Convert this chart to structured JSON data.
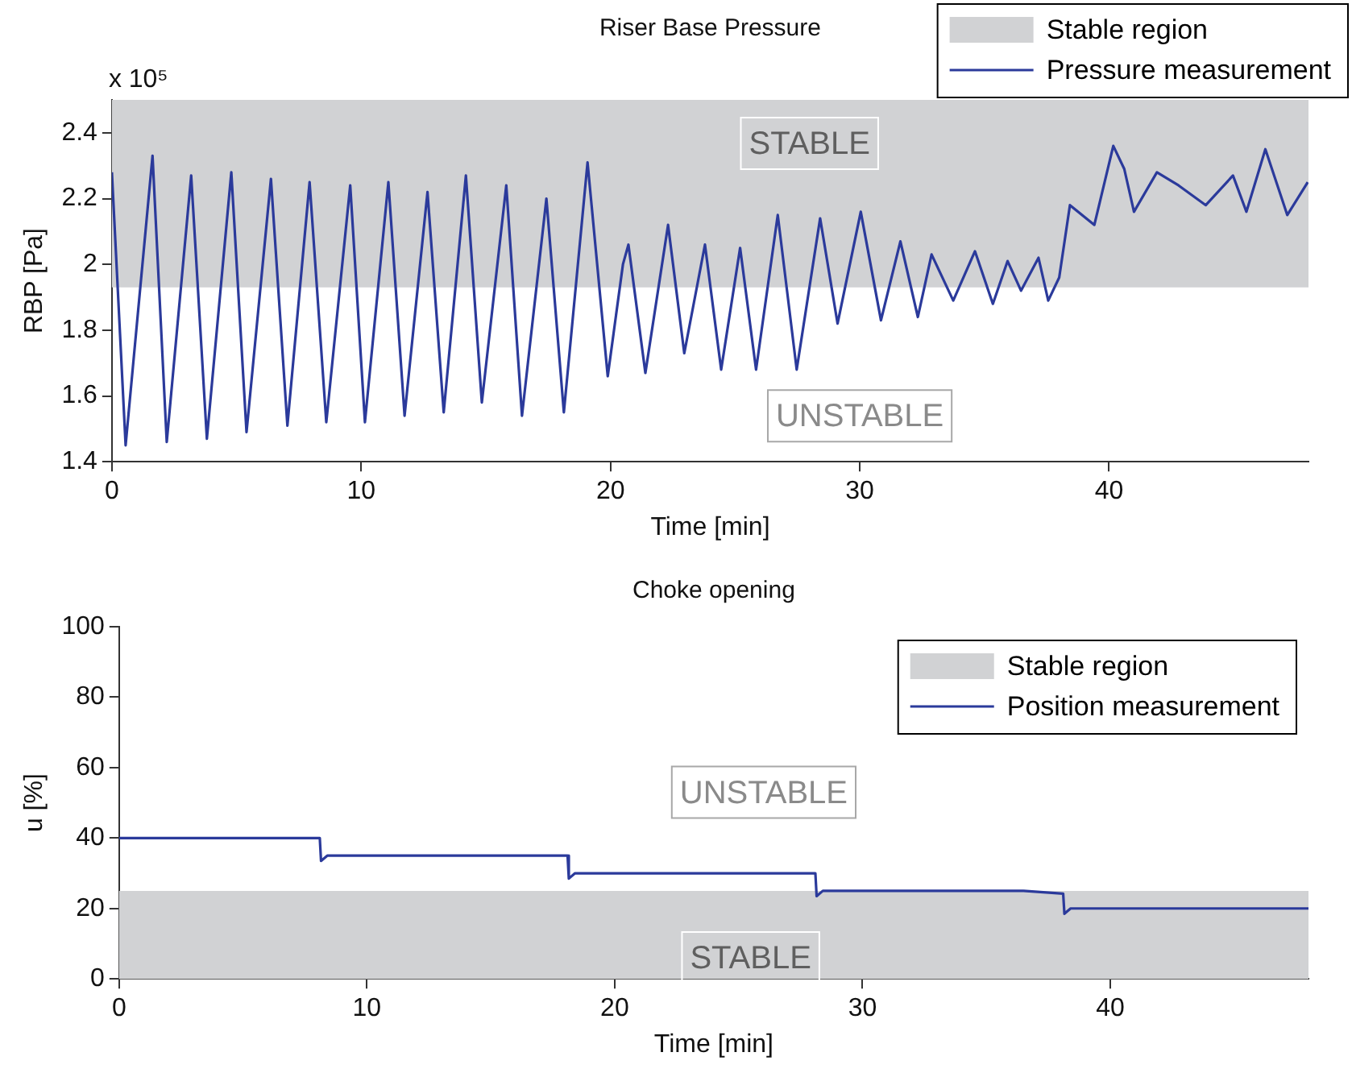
{
  "chart_data": [
    {
      "type": "line",
      "title": "Riser Base Pressure",
      "xlabel": "Time [min]",
      "ylabel": "RBP [Pa]",
      "xlim": [
        0,
        48
      ],
      "xticks": [
        0,
        10,
        20,
        30,
        40
      ],
      "ylim": [
        1.4,
        2.5
      ],
      "yticks": [
        1.4,
        1.6,
        1.8,
        2,
        2.2,
        2.4
      ],
      "grid": false,
      "legend": "top",
      "marker": "none",
      "line_style": "solid",
      "bands": [
        {
          "axis": "y",
          "from": 1.93,
          "to": 2.5,
          "label": "Stable region",
          "color": "#d1d2d4"
        }
      ],
      "annotations": [
        "x 10⁵",
        "STABLE",
        "UNSTABLE"
      ],
      "series": [
        {
          "name": "Pressure measurement",
          "color": "#2b3a9b",
          "x": [
            0,
            0.55,
            1.63,
            2.2,
            3.18,
            3.81,
            4.79,
            5.4,
            6.38,
            7.04,
            7.93,
            8.6,
            9.56,
            10.15,
            11.09,
            11.74,
            12.66,
            13.31,
            14.2,
            14.84,
            15.82,
            16.45,
            17.43,
            18.13,
            19.08,
            19.89,
            20.5,
            20.72,
            21.4,
            22.31,
            22.96,
            23.79,
            24.44,
            25.2,
            25.84,
            26.71,
            27.47,
            28.41,
            29.11,
            30.04,
            30.85,
            31.63,
            32.33,
            32.88,
            33.75,
            34.62,
            35.34,
            35.93,
            36.47,
            37.17,
            37.56,
            38.0,
            38.43,
            39.41,
            40.17,
            40.61,
            41.0,
            41.92,
            42.79,
            43.88,
            44.97,
            45.51,
            46.27,
            47.15,
            47.97
          ],
          "values": [
            2.28,
            1.45,
            2.33,
            1.46,
            2.27,
            1.47,
            2.28,
            1.49,
            2.26,
            1.51,
            2.25,
            1.52,
            2.24,
            1.52,
            2.25,
            1.54,
            2.22,
            1.55,
            2.27,
            1.58,
            2.24,
            1.54,
            2.2,
            1.55,
            2.31,
            1.66,
            2.0,
            2.06,
            1.67,
            2.12,
            1.73,
            2.06,
            1.68,
            2.05,
            1.68,
            2.15,
            1.68,
            2.14,
            1.82,
            2.16,
            1.83,
            2.07,
            1.84,
            2.03,
            1.89,
            2.04,
            1.88,
            2.01,
            1.92,
            2.02,
            1.89,
            1.96,
            2.18,
            2.12,
            2.36,
            2.29,
            2.16,
            2.28,
            2.24,
            2.18,
            2.27,
            2.16,
            2.35,
            2.15,
            2.25
          ]
        }
      ]
    },
    {
      "type": "line",
      "title": "Choke opening",
      "xlabel": "Time [min]",
      "ylabel": "u [%]",
      "xlim": [
        0,
        48
      ],
      "xticks": [
        0,
        10,
        20,
        30,
        40
      ],
      "ylim": [
        0,
        100
      ],
      "yticks": [
        0,
        20,
        40,
        60,
        80,
        100
      ],
      "grid": false,
      "legend": "top right",
      "marker": "none",
      "line_style": "solid",
      "bands": [
        {
          "axis": "y",
          "from": 0,
          "to": 25,
          "label": "Stable region",
          "color": "#d1d2d4"
        }
      ],
      "annotations": [
        "UNSTABLE",
        "STABLE"
      ],
      "series": [
        {
          "name": "Position measurement",
          "color": "#2b3a9b",
          "x": [
            0,
            8.1,
            8.15,
            8.4,
            18.1,
            18.15,
            18.4,
            28.1,
            28.15,
            28.4,
            36.5,
            38.1,
            38.15,
            38.4,
            48
          ],
          "values": [
            40,
            40,
            33.5,
            35,
            35,
            28.5,
            30,
            30,
            23.5,
            25,
            25,
            24.2,
            18.5,
            20,
            20
          ]
        }
      ]
    }
  ]
}
